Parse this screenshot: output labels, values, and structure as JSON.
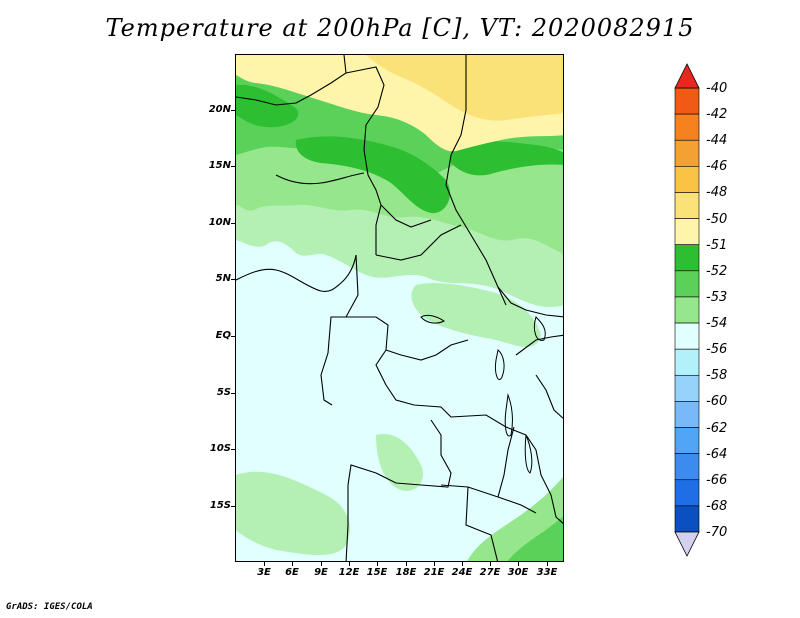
{
  "title": "Temperature at 200hPa [C], VT: 2020082915",
  "credit": "GrADS: IGES/COLA",
  "map": {
    "lat_labels": [
      "20N",
      "15N",
      "10N",
      "5N",
      "EQ",
      "5S",
      "10S",
      "15S"
    ],
    "lon_labels": [
      "3E",
      "6E",
      "9E",
      "12E",
      "15E",
      "18E",
      "21E",
      "24E",
      "27E",
      "30E",
      "33E"
    ]
  },
  "legend": {
    "labels": [
      "-40",
      "-42",
      "-44",
      "-46",
      "-48",
      "-50",
      "-51",
      "-52",
      "-53",
      "-54",
      "-56",
      "-58",
      "-60",
      "-62",
      "-64",
      "-66",
      "-68",
      "-70"
    ],
    "colors": [
      "#e8281e",
      "#f05a14",
      "#f5821e",
      "#f5a032",
      "#fac346",
      "#fae178",
      "#fff5aa",
      "#2ebe32",
      "#5ad25a",
      "#96e68c",
      "#e1ffff",
      "#b4f0fa",
      "#96d2fa",
      "#78b9fa",
      "#50a5f5",
      "#3c8cf0",
      "#1e6ee6",
      "#0a50be",
      "#0a1e78"
    ]
  }
}
